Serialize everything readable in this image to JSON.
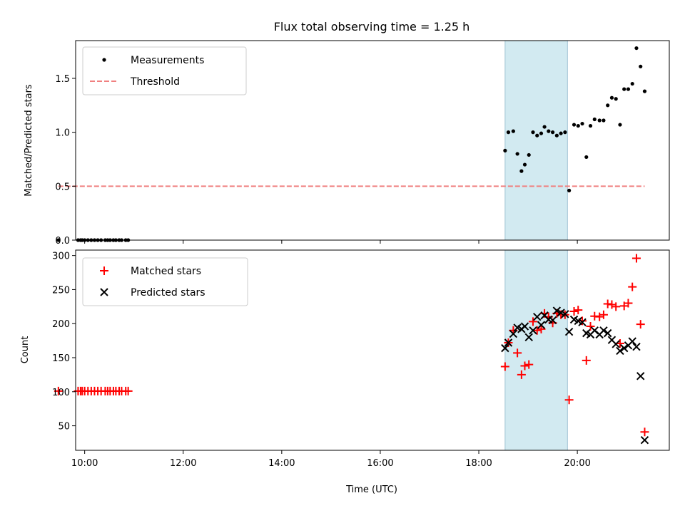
{
  "figure": {
    "title": "Flux total observing time = 1.25 h",
    "xlabel": "Time (UTC)"
  },
  "colors": {
    "measurement": "#000000",
    "threshold": "#f08080",
    "matched": "#ff0000",
    "predicted": "#000000",
    "highlight": "#add8e6"
  },
  "chart_data": [
    {
      "type": "scatter",
      "panel": "top",
      "ylabel": "Matched/Predicted stars",
      "xlim": [
        "09:49",
        "21:52"
      ],
      "ylim": [
        0,
        1.85
      ],
      "xticks": [
        "10:00",
        "12:00",
        "14:00",
        "16:00",
        "18:00",
        "20:00"
      ],
      "yticks": [
        "0.0",
        "0.5",
        "1.0",
        "1.5"
      ],
      "highlight_span": [
        "18:32",
        "19:48"
      ],
      "legend_position": "upper left",
      "series": [
        {
          "name": "Measurements",
          "marker": "dot",
          "points": [
            [
              "09:28",
              0.0
            ],
            [
              "09:52",
              0.0
            ],
            [
              "09:55",
              0.0
            ],
            [
              "09:57",
              0.0
            ],
            [
              "10:00",
              0.0
            ],
            [
              "10:04",
              0.0
            ],
            [
              "10:08",
              0.0
            ],
            [
              "10:12",
              0.0
            ],
            [
              "10:16",
              0.0
            ],
            [
              "10:20",
              0.0
            ],
            [
              "10:25",
              0.0
            ],
            [
              "10:28",
              0.0
            ],
            [
              "10:31",
              0.0
            ],
            [
              "10:35",
              0.0
            ],
            [
              "10:38",
              0.0
            ],
            [
              "10:42",
              0.0
            ],
            [
              "10:45",
              0.0
            ],
            [
              "10:50",
              0.0
            ],
            [
              "10:53",
              0.0
            ],
            [
              "18:32",
              0.83
            ],
            [
              "18:36",
              1.0
            ],
            [
              "18:42",
              1.01
            ],
            [
              "18:47",
              0.8
            ],
            [
              "18:52",
              0.64
            ],
            [
              "18:56",
              0.7
            ],
            [
              "19:01",
              0.79
            ],
            [
              "19:06",
              1.0
            ],
            [
              "19:11",
              0.97
            ],
            [
              "19:16",
              0.99
            ],
            [
              "19:20",
              1.05
            ],
            [
              "19:25",
              1.01
            ],
            [
              "19:30",
              1.0
            ],
            [
              "19:35",
              0.97
            ],
            [
              "19:40",
              0.99
            ],
            [
              "19:45",
              1.0
            ],
            [
              "19:50",
              0.46
            ],
            [
              "19:56",
              1.07
            ],
            [
              "20:01",
              1.06
            ],
            [
              "20:06",
              1.08
            ],
            [
              "20:11",
              0.77
            ],
            [
              "20:16",
              1.06
            ],
            [
              "20:21",
              1.12
            ],
            [
              "20:27",
              1.11
            ],
            [
              "20:32",
              1.11
            ],
            [
              "20:37",
              1.25
            ],
            [
              "20:42",
              1.32
            ],
            [
              "20:47",
              1.31
            ],
            [
              "20:52",
              1.07
            ],
            [
              "20:57",
              1.4
            ],
            [
              "21:02",
              1.4
            ],
            [
              "21:07",
              1.45
            ],
            [
              "21:12",
              1.78
            ],
            [
              "21:17",
              1.61
            ],
            [
              "21:22",
              1.38
            ]
          ]
        },
        {
          "name": "Threshold",
          "style": "dashed",
          "x": [
            "09:28",
            "21:22"
          ],
          "y": [
            0.5,
            0.5
          ]
        }
      ]
    },
    {
      "type": "scatter",
      "panel": "bottom",
      "ylabel": "Count",
      "xlim": [
        "09:49",
        "21:52"
      ],
      "ylim": [
        14,
        308
      ],
      "xticks": [
        "10:00",
        "12:00",
        "14:00",
        "16:00",
        "18:00",
        "20:00"
      ],
      "yticks": [
        "50",
        "100",
        "150",
        "200",
        "250",
        "300"
      ],
      "highlight_span": [
        "18:32",
        "19:48"
      ],
      "legend_position": "upper left",
      "series": [
        {
          "name": "Matched stars",
          "marker": "plus",
          "points": [
            [
              "09:28",
              101
            ],
            [
              "09:52",
              101
            ],
            [
              "09:55",
              101
            ],
            [
              "09:57",
              101
            ],
            [
              "10:00",
              101
            ],
            [
              "10:04",
              101
            ],
            [
              "10:08",
              101
            ],
            [
              "10:12",
              101
            ],
            [
              "10:16",
              101
            ],
            [
              "10:20",
              101
            ],
            [
              "10:25",
              101
            ],
            [
              "10:28",
              101
            ],
            [
              "10:31",
              101
            ],
            [
              "10:35",
              101
            ],
            [
              "10:38",
              101
            ],
            [
              "10:42",
              101
            ],
            [
              "10:45",
              101
            ],
            [
              "10:50",
              101
            ],
            [
              "10:53",
              101
            ],
            [
              "18:32",
              137
            ],
            [
              "18:36",
              172
            ],
            [
              "18:42",
              190
            ],
            [
              "18:47",
              157
            ],
            [
              "18:52",
              125
            ],
            [
              "18:56",
              138
            ],
            [
              "19:01",
              140
            ],
            [
              "19:06",
              203
            ],
            [
              "19:11",
              190
            ],
            [
              "19:16",
              192
            ],
            [
              "19:20",
              215
            ],
            [
              "19:25",
              210
            ],
            [
              "19:30",
              201
            ],
            [
              "19:35",
              215
            ],
            [
              "19:40",
              213
            ],
            [
              "19:45",
              213
            ],
            [
              "19:50",
              88
            ],
            [
              "19:56",
              218
            ],
            [
              "20:01",
              220
            ],
            [
              "20:06",
              204
            ],
            [
              "20:11",
              146
            ],
            [
              "20:16",
              196
            ],
            [
              "20:21",
              211
            ],
            [
              "20:27",
              210
            ],
            [
              "20:32",
              213
            ],
            [
              "20:37",
              229
            ],
            [
              "20:42",
              228
            ],
            [
              "20:47",
              225
            ],
            [
              "20:52",
              171
            ],
            [
              "20:57",
              226
            ],
            [
              "21:02",
              230
            ],
            [
              "21:07",
              254
            ],
            [
              "21:12",
              296
            ],
            [
              "21:17",
              199
            ],
            [
              "21:22",
              41
            ]
          ]
        },
        {
          "name": "Predicted stars",
          "marker": "x",
          "points": [
            [
              "18:32",
              164
            ],
            [
              "18:36",
              172
            ],
            [
              "18:42",
              185
            ],
            [
              "18:47",
              194
            ],
            [
              "18:52",
              192
            ],
            [
              "18:56",
              196
            ],
            [
              "19:01",
              180
            ],
            [
              "19:06",
              190
            ],
            [
              "19:11",
              210
            ],
            [
              "19:16",
              198
            ],
            [
              "19:20",
              212
            ],
            [
              "19:25",
              206
            ],
            [
              "19:30",
              205
            ],
            [
              "19:35",
              219
            ],
            [
              "19:40",
              216
            ],
            [
              "19:45",
              214
            ],
            [
              "19:50",
              188
            ],
            [
              "19:56",
              206
            ],
            [
              "20:01",
              204
            ],
            [
              "20:06",
              202
            ],
            [
              "20:11",
              186
            ],
            [
              "20:16",
              184
            ],
            [
              "20:21",
              190
            ],
            [
              "20:27",
              184
            ],
            [
              "20:32",
              190
            ],
            [
              "20:37",
              186
            ],
            [
              "20:42",
              176
            ],
            [
              "20:47",
              170
            ],
            [
              "20:52",
              160
            ],
            [
              "20:57",
              164
            ],
            [
              "21:02",
              168
            ],
            [
              "21:07",
              174
            ],
            [
              "21:12",
              166
            ],
            [
              "21:17",
              123
            ],
            [
              "21:22",
              29
            ]
          ]
        }
      ]
    }
  ]
}
